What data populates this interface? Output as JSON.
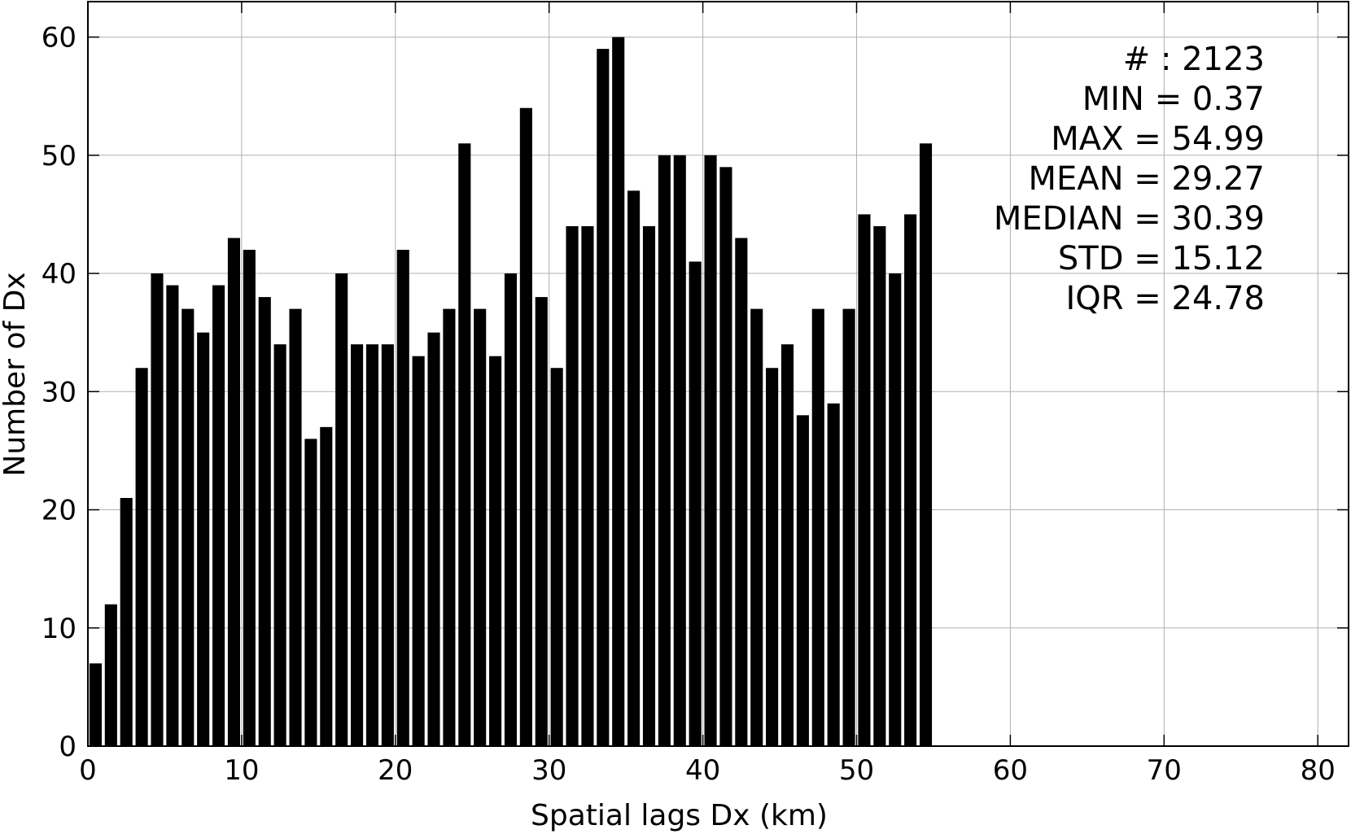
{
  "chart_data": {
    "type": "bar",
    "xlabel": "Spatial lags Dx (km)",
    "ylabel": "Number of Dx",
    "xlim": [
      0,
      82
    ],
    "ylim": [
      0,
      63
    ],
    "grid": true,
    "bar_width": 0.8,
    "x": [
      0.5,
      1.5,
      2.5,
      3.5,
      4.5,
      5.5,
      6.5,
      7.5,
      8.5,
      9.5,
      10.5,
      11.5,
      12.5,
      13.5,
      14.5,
      15.5,
      16.5,
      17.5,
      18.5,
      19.5,
      20.5,
      21.5,
      22.5,
      23.5,
      24.5,
      25.5,
      26.5,
      27.5,
      28.5,
      29.5,
      30.5,
      31.5,
      32.5,
      33.5,
      34.5,
      35.5,
      36.5,
      37.5,
      38.5,
      39.5,
      40.5,
      41.5,
      42.5,
      43.5,
      44.5,
      45.5,
      46.5,
      47.5,
      48.5,
      49.5,
      50.5,
      51.5,
      52.5,
      53.5,
      54.5
    ],
    "values": [
      7,
      12,
      21,
      32,
      40,
      39,
      37,
      35,
      39,
      43,
      42,
      38,
      34,
      37,
      26,
      27,
      40,
      34,
      34,
      34,
      42,
      33,
      35,
      37,
      51,
      37,
      33,
      40,
      54,
      38,
      32,
      44,
      44,
      59,
      60,
      47,
      44,
      50,
      50,
      41,
      50,
      49,
      43,
      37,
      32,
      34,
      28,
      37,
      29,
      37,
      45,
      44,
      40,
      45,
      51
    ],
    "xticks": [
      "0",
      "10",
      "20",
      "30",
      "40",
      "50",
      "60",
      "70",
      "80"
    ],
    "yticks": [
      "0",
      "10",
      "20",
      "30",
      "40",
      "50",
      "60"
    ],
    "annotations": [
      "# : 2123",
      "MIN = 0.37",
      "MAX =  54.99",
      "MEAN = 29.27",
      "MEDIAN = 30.39",
      "STD = 15.12",
      "IQR = 24.78"
    ],
    "bar_color": "#000000"
  }
}
